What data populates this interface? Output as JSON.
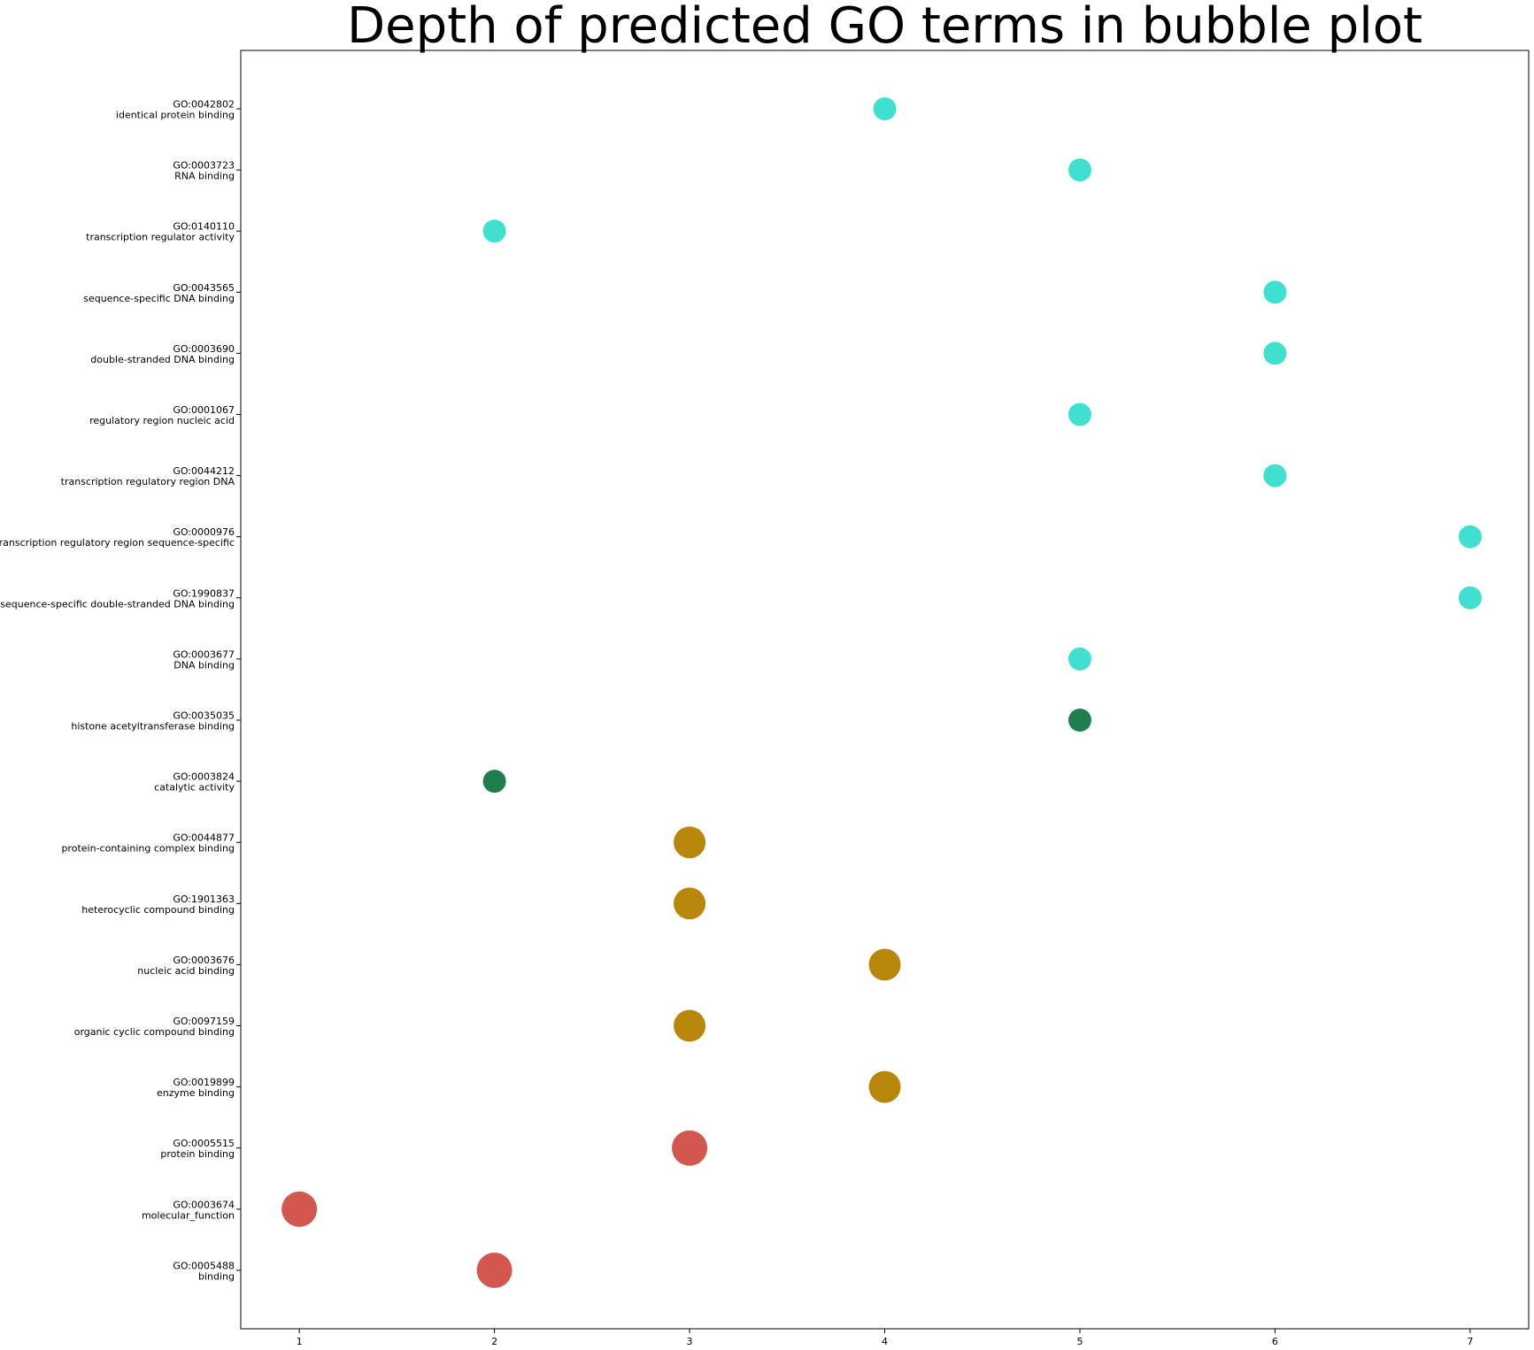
{
  "chart_data": {
    "type": "scatter",
    "title": "Depth of predicted GO terms in bubble plot",
    "xlabel": "",
    "ylabel": "",
    "xlim": [
      0.7,
      7.3
    ],
    "x_ticks": [
      1,
      2,
      3,
      4,
      5,
      6,
      7
    ],
    "grid": false,
    "legend": "none",
    "colors": {
      "turquoise": "#40E0D0",
      "dark_green": "#1F7F4C",
      "dark_goldenrod": "#B8860B",
      "red": "#D2584F"
    },
    "points": [
      {
        "id": "GO:0042802",
        "name": "identical protein binding",
        "x": 4,
        "size": 1,
        "color": "#40E0D0"
      },
      {
        "id": "GO:0003723",
        "name": "RNA binding",
        "x": 5,
        "size": 1,
        "color": "#40E0D0"
      },
      {
        "id": "GO:0140110",
        "name": "transcription regulator activity",
        "x": 2,
        "size": 1,
        "color": "#40E0D0"
      },
      {
        "id": "GO:0043565",
        "name": "sequence-specific DNA binding",
        "x": 6,
        "size": 1,
        "color": "#40E0D0"
      },
      {
        "id": "GO:0003690",
        "name": "double-stranded DNA binding",
        "x": 6,
        "size": 1,
        "color": "#40E0D0"
      },
      {
        "id": "GO:0001067",
        "name": "regulatory region nucleic acid",
        "x": 5,
        "size": 1,
        "color": "#40E0D0"
      },
      {
        "id": "GO:0044212",
        "name": "transcription regulatory region DNA",
        "x": 6,
        "size": 1,
        "color": "#40E0D0"
      },
      {
        "id": "GO:0000976",
        "name": "transcription regulatory region sequence-specific",
        "x": 7,
        "size": 1,
        "color": "#40E0D0"
      },
      {
        "id": "GO:1990837",
        "name": "sequence-specific double-stranded DNA binding",
        "x": 7,
        "size": 1,
        "color": "#40E0D0"
      },
      {
        "id": "GO:0003677",
        "name": "DNA binding",
        "x": 5,
        "size": 1,
        "color": "#40E0D0"
      },
      {
        "id": "GO:0035035",
        "name": "histone acetyltransferase binding",
        "x": 5,
        "size": 1,
        "color": "#1F7F4C"
      },
      {
        "id": "GO:0003824",
        "name": "catalytic activity",
        "x": 2,
        "size": 1,
        "color": "#1F7F4C"
      },
      {
        "id": "GO:0044877",
        "name": "protein-containing complex binding",
        "x": 3,
        "size": 2,
        "color": "#B8860B"
      },
      {
        "id": "GO:1901363",
        "name": "heterocyclic compound binding",
        "x": 3,
        "size": 2,
        "color": "#B8860B"
      },
      {
        "id": "GO:0003676",
        "name": "nucleic acid binding",
        "x": 4,
        "size": 2,
        "color": "#B8860B"
      },
      {
        "id": "GO:0097159",
        "name": "organic cyclic compound binding",
        "x": 3,
        "size": 2,
        "color": "#B8860B"
      },
      {
        "id": "GO:0019899",
        "name": "enzyme binding",
        "x": 4,
        "size": 2,
        "color": "#B8860B"
      },
      {
        "id": "GO:0005515",
        "name": "protein binding",
        "x": 3,
        "size": 3,
        "color": "#D2584F"
      },
      {
        "id": "GO:0003674",
        "name": "molecular_function",
        "x": 1,
        "size": 3,
        "color": "#D2584F"
      },
      {
        "id": "GO:0005488",
        "name": "binding",
        "x": 2,
        "size": 3,
        "color": "#D2584F"
      }
    ]
  }
}
